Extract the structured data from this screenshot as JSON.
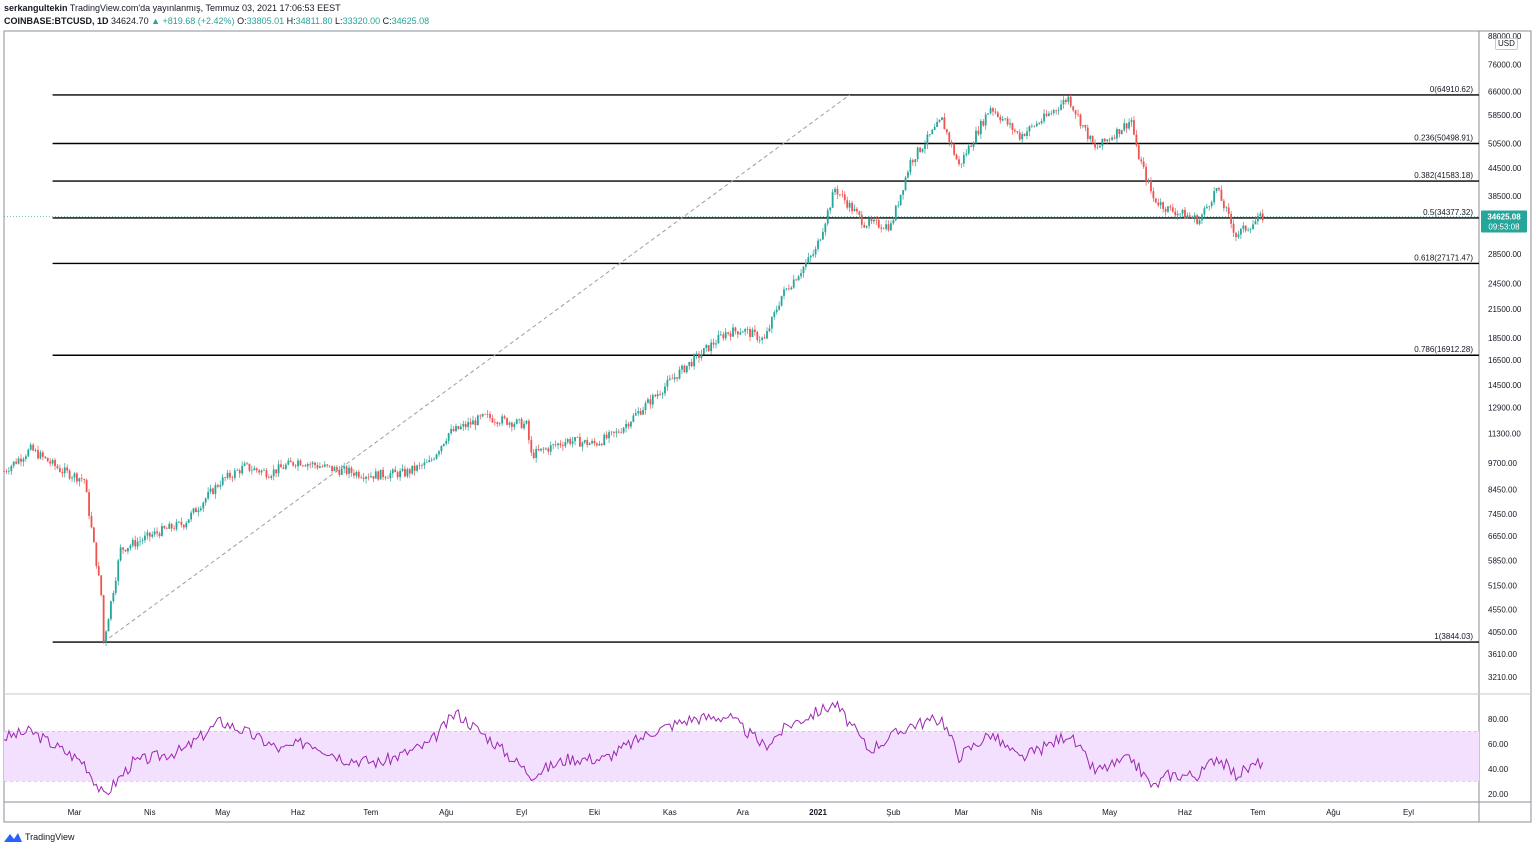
{
  "header": {
    "user": "serkangultekin",
    "publish_text": "TradingView.com'da yayınlanmış, Temmuz 03, 2021 17:06:53 EEST",
    "symbol": "COINBASE:BTCUSD, 1D",
    "last": "34624.70",
    "change": "▲ +819.68 (+2.42%)",
    "o_label": "O:",
    "o_value": "33805.01",
    "h_label": "H:",
    "h_value": "34811.80",
    "l_label": "L:",
    "l_value": "33320.00",
    "c_label": "C:",
    "c_value": "34625.08"
  },
  "currency": "USD",
  "price_badge": {
    "price": "34625.08",
    "countdown": "09:53:08"
  },
  "footer": {
    "brand": "TradingView"
  },
  "colors": {
    "up": "#26a69a",
    "down": "#ef5350",
    "rsi_line": "#9c27b0",
    "rsi_band": "#f3e0ff",
    "fib_line": "#000000",
    "trend": "#9e9e9e"
  },
  "chart_data": {
    "type": "candlestick",
    "y_scale": "log",
    "ylim": [
      3000,
      88000
    ],
    "y_ticks": [
      "88000.00",
      "76000.00",
      "66000.00",
      "58500.00",
      "50500.00",
      "44500.00",
      "38500.00",
      "34625.08",
      "28500.00",
      "24500.00",
      "21500.00",
      "18500.00",
      "16500.00",
      "14500.00",
      "12900.00",
      "11300.00",
      "9700.00",
      "8450.00",
      "7450.00",
      "6650.00",
      "5850.00",
      "5150.00",
      "4550.00",
      "4050.00",
      "3610.00",
      "3210.00"
    ],
    "x_ticks": [
      "Mar",
      "Nis",
      "May",
      "Haz",
      "Tem",
      "Ağu",
      "Eyl",
      "Eki",
      "Kas",
      "Ara",
      "2021",
      "Şub",
      "Mar",
      "Nis",
      "May",
      "Haz",
      "Tem",
      "Ağu",
      "Eyl"
    ],
    "x_range": [
      "2020-02-01",
      "2021-09-30"
    ],
    "fib_levels": [
      {
        "label": "0(64910.62)",
        "value": 64910.62
      },
      {
        "label": "0.236(50498.91)",
        "value": 50498.91
      },
      {
        "label": "0.382(41583.18)",
        "value": 41583.18
      },
      {
        "label": "0.5(34377.32)",
        "value": 34377.32
      },
      {
        "label": "0.618(27171.47)",
        "value": 27171.47
      },
      {
        "label": "0.786(16912.28)",
        "value": 16912.28
      },
      {
        "label": "1(3844.03)",
        "value": 3844.03
      }
    ],
    "trendline": [
      [
        "2020-03-13",
        3844.03
      ],
      [
        "2021-01-14",
        64910.62
      ]
    ],
    "price_path": [
      [
        "2020-02-01",
        9300
      ],
      [
        "2020-02-12",
        10400
      ],
      [
        "2020-02-25",
        9300
      ],
      [
        "2020-03-05",
        8900
      ],
      [
        "2020-03-12",
        4900
      ],
      [
        "2020-03-13",
        3844
      ],
      [
        "2020-03-20",
        6200
      ],
      [
        "2020-04-05",
        6800
      ],
      [
        "2020-04-15",
        7100
      ],
      [
        "2020-04-30",
        8800
      ],
      [
        "2020-05-10",
        9500
      ],
      [
        "2020-05-20",
        9200
      ],
      [
        "2020-06-01",
        9800
      ],
      [
        "2020-06-15",
        9400
      ],
      [
        "2020-07-01",
        9100
      ],
      [
        "2020-07-15",
        9200
      ],
      [
        "2020-07-25",
        9700
      ],
      [
        "2020-08-02",
        11300
      ],
      [
        "2020-08-17",
        12300
      ],
      [
        "2020-09-03",
        11800
      ],
      [
        "2020-09-05",
        10100
      ],
      [
        "2020-09-20",
        10900
      ],
      [
        "2020-10-01",
        10700
      ],
      [
        "2020-10-10",
        11300
      ],
      [
        "2020-10-21",
        12900
      ],
      [
        "2020-11-05",
        15500
      ],
      [
        "2020-11-24",
        19000
      ],
      [
        "2020-12-01",
        19300
      ],
      [
        "2020-12-10",
        18300
      ],
      [
        "2020-12-17",
        23000
      ],
      [
        "2020-12-31",
        29000
      ],
      [
        "2021-01-08",
        40000
      ],
      [
        "2021-01-20",
        33500
      ],
      [
        "2021-01-31",
        33000
      ],
      [
        "2021-02-08",
        46000
      ],
      [
        "2021-02-21",
        57000
      ],
      [
        "2021-02-28",
        45000
      ],
      [
        "2021-03-13",
        61000
      ],
      [
        "2021-03-25",
        52500
      ],
      [
        "2021-04-05",
        58000
      ],
      [
        "2021-04-14",
        64000
      ],
      [
        "2021-04-25",
        49000
      ],
      [
        "2021-05-10",
        57000
      ],
      [
        "2021-05-12",
        49000
      ],
      [
        "2021-05-19",
        38000
      ],
      [
        "2021-05-25",
        36000
      ],
      [
        "2021-06-07",
        34000
      ],
      [
        "2021-06-14",
        40000
      ],
      [
        "2021-06-22",
        31500
      ],
      [
        "2021-07-03",
        34625
      ],
      [
        "2021-07-06",
        34625
      ]
    ],
    "rsi": {
      "ylim": [
        15,
        95
      ],
      "y_ticks": [
        "80.00",
        "60.00",
        "40.00",
        "20.00"
      ],
      "band": [
        30,
        70
      ],
      "path": [
        [
          "2020-02-01",
          65
        ],
        [
          "2020-02-12",
          70
        ],
        [
          "2020-02-25",
          55
        ],
        [
          "2020-03-05",
          45
        ],
        [
          "2020-03-13",
          18
        ],
        [
          "2020-03-25",
          45
        ],
        [
          "2020-04-15",
          55
        ],
        [
          "2020-04-30",
          78
        ],
        [
          "2020-05-10",
          70
        ],
        [
          "2020-05-25",
          55
        ],
        [
          "2020-06-05",
          62
        ],
        [
          "2020-06-20",
          48
        ],
        [
          "2020-07-05",
          45
        ],
        [
          "2020-07-25",
          60
        ],
        [
          "2020-08-05",
          85
        ],
        [
          "2020-08-20",
          62
        ],
        [
          "2020-09-05",
          35
        ],
        [
          "2020-09-20",
          48
        ],
        [
          "2020-10-05",
          48
        ],
        [
          "2020-10-25",
          70
        ],
        [
          "2020-11-10",
          80
        ],
        [
          "2020-11-25",
          82
        ],
        [
          "2020-12-10",
          58
        ],
        [
          "2020-12-20",
          75
        ],
        [
          "2021-01-08",
          92
        ],
        [
          "2021-01-22",
          55
        ],
        [
          "2021-02-08",
          75
        ],
        [
          "2021-02-21",
          80
        ],
        [
          "2021-02-28",
          50
        ],
        [
          "2021-03-13",
          68
        ],
        [
          "2021-03-25",
          48
        ],
        [
          "2021-04-05",
          58
        ],
        [
          "2021-04-14",
          68
        ],
        [
          "2021-04-25",
          38
        ],
        [
          "2021-05-10",
          48
        ],
        [
          "2021-05-19",
          25
        ],
        [
          "2021-05-25",
          35
        ],
        [
          "2021-06-07",
          35
        ],
        [
          "2021-06-14",
          50
        ],
        [
          "2021-06-22",
          35
        ],
        [
          "2021-07-03",
          46
        ]
      ]
    }
  }
}
